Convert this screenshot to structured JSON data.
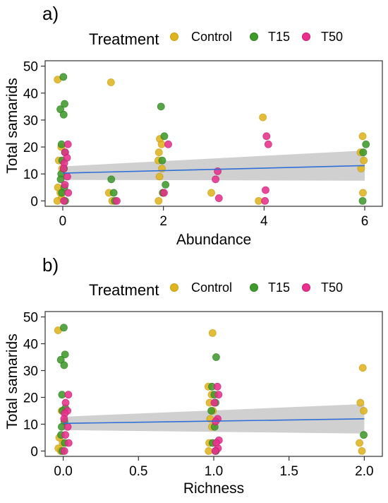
{
  "colors": {
    "Control": "#e0b41e",
    "T15": "#3f9a2c",
    "T50": "#e8308c",
    "fit_line": "#2f6fd6",
    "ribbon": "#c8c8c8"
  },
  "chart_data": [
    {
      "type": "scatter",
      "panel_label": "a)",
      "legend_title": "Treatment",
      "legend_entries": [
        "Control",
        "T15",
        "T50"
      ],
      "xlabel": "Abundance",
      "ylabel": "Total samarids",
      "xlim": [
        -0.35,
        6.35
      ],
      "ylim": [
        -2,
        52
      ],
      "xticks": [
        0,
        2,
        4,
        6
      ],
      "yticks": [
        0,
        10,
        20,
        30,
        40,
        50
      ],
      "grid": false,
      "legend_position": "top",
      "series": [
        {
          "name": "Control",
          "points": [
            [
              0,
              45
            ],
            [
              0,
              20
            ],
            [
              0,
              15
            ],
            [
              0,
              12
            ],
            [
              0,
              5
            ],
            [
              0,
              3
            ],
            [
              0,
              1
            ],
            [
              0,
              0
            ],
            [
              1,
              44
            ],
            [
              1,
              3
            ],
            [
              1,
              0
            ],
            [
              2,
              23
            ],
            [
              2,
              21
            ],
            [
              2,
              18
            ],
            [
              2,
              15
            ],
            [
              2,
              12
            ],
            [
              2,
              9
            ],
            [
              2,
              3
            ],
            [
              2,
              0
            ],
            [
              3,
              3
            ],
            [
              4,
              31
            ],
            [
              4,
              0
            ],
            [
              6,
              24
            ],
            [
              6,
              18
            ],
            [
              6,
              15
            ],
            [
              6,
              12
            ],
            [
              6,
              3
            ]
          ]
        },
        {
          "name": "T15",
          "points": [
            [
              0,
              46
            ],
            [
              0,
              36
            ],
            [
              0,
              34
            ],
            [
              0,
              32
            ],
            [
              0,
              21
            ],
            [
              0,
              18
            ],
            [
              0,
              15
            ],
            [
              0,
              12
            ],
            [
              0,
              10
            ],
            [
              0,
              8
            ],
            [
              0,
              5
            ],
            [
              0,
              3
            ],
            [
              0,
              0
            ],
            [
              1,
              8
            ],
            [
              1,
              3
            ],
            [
              1,
              0
            ],
            [
              2,
              35
            ],
            [
              2,
              24
            ],
            [
              2,
              15
            ],
            [
              2,
              6
            ],
            [
              2,
              3
            ],
            [
              6,
              21
            ],
            [
              6,
              18
            ],
            [
              6,
              0
            ]
          ]
        },
        {
          "name": "T50",
          "points": [
            [
              0,
              21
            ],
            [
              0,
              18
            ],
            [
              0,
              16
            ],
            [
              0,
              14
            ],
            [
              0,
              12
            ],
            [
              0,
              9
            ],
            [
              0,
              6
            ],
            [
              0,
              3
            ],
            [
              0,
              0
            ],
            [
              1,
              0
            ],
            [
              2,
              21
            ],
            [
              2,
              3
            ],
            [
              3,
              11
            ],
            [
              3,
              8
            ],
            [
              3,
              1
            ],
            [
              4,
              24
            ],
            [
              4,
              21
            ],
            [
              4,
              4
            ],
            [
              4,
              0
            ]
          ]
        }
      ],
      "fit": {
        "x": [
          0,
          6
        ],
        "y": [
          10.3,
          13.1
        ],
        "ci_lower": [
          7.8,
          7.5
        ],
        "ci_upper": [
          12.8,
          18.7
        ]
      }
    },
    {
      "type": "scatter",
      "panel_label": "b)",
      "legend_title": "Treatment",
      "legend_entries": [
        "Control",
        "T15",
        "T50"
      ],
      "xlabel": "Richness",
      "ylabel": "Total samarids",
      "xlim": [
        -0.12,
        2.12
      ],
      "ylim": [
        -2,
        52
      ],
      "xticks": [
        0.0,
        0.5,
        1.0,
        1.5,
        2.0
      ],
      "yticks": [
        0,
        10,
        20,
        30,
        40,
        50
      ],
      "grid": false,
      "legend_position": "top",
      "series": [
        {
          "name": "Control",
          "points": [
            [
              0,
              45
            ],
            [
              0,
              15
            ],
            [
              0,
              5
            ],
            [
              0,
              3
            ],
            [
              0,
              1
            ],
            [
              0,
              0
            ],
            [
              1,
              44
            ],
            [
              1,
              24
            ],
            [
              1,
              21
            ],
            [
              1,
              18
            ],
            [
              1,
              15
            ],
            [
              1,
              12
            ],
            [
              1,
              9
            ],
            [
              1,
              3
            ],
            [
              1,
              0
            ],
            [
              2,
              31
            ],
            [
              2,
              18
            ],
            [
              2,
              15
            ],
            [
              2,
              3
            ],
            [
              2,
              0
            ]
          ]
        },
        {
          "name": "T15",
          "points": [
            [
              0,
              46
            ],
            [
              0,
              36
            ],
            [
              0,
              34
            ],
            [
              0,
              32
            ],
            [
              0,
              21
            ],
            [
              0,
              16
            ],
            [
              0,
              15
            ],
            [
              0,
              11
            ],
            [
              0,
              9
            ],
            [
              0,
              6
            ],
            [
              0,
              3
            ],
            [
              0,
              0
            ],
            [
              1,
              35
            ],
            [
              1,
              24
            ],
            [
              1,
              21
            ],
            [
              1,
              18
            ],
            [
              1,
              15
            ],
            [
              1,
              9
            ],
            [
              1,
              3
            ],
            [
              1,
              0
            ],
            [
              2,
              6
            ]
          ]
        },
        {
          "name": "T50",
          "points": [
            [
              0,
              21
            ],
            [
              0,
              18
            ],
            [
              0,
              15
            ],
            [
              0,
              14
            ],
            [
              0,
              12
            ],
            [
              0,
              9
            ],
            [
              0,
              6
            ],
            [
              0,
              3
            ],
            [
              0,
              0
            ],
            [
              1,
              24
            ],
            [
              1,
              21
            ],
            [
              1,
              18
            ],
            [
              1,
              12
            ],
            [
              1,
              11
            ],
            [
              1,
              4
            ],
            [
              1,
              3
            ],
            [
              1,
              1
            ],
            [
              1,
              0
            ]
          ]
        }
      ],
      "fit": {
        "x": [
          0,
          2
        ],
        "y": [
          10.3,
          12.0
        ],
        "ci_lower": [
          7.8,
          6.5
        ],
        "ci_upper": [
          12.8,
          17.5
        ]
      }
    }
  ]
}
